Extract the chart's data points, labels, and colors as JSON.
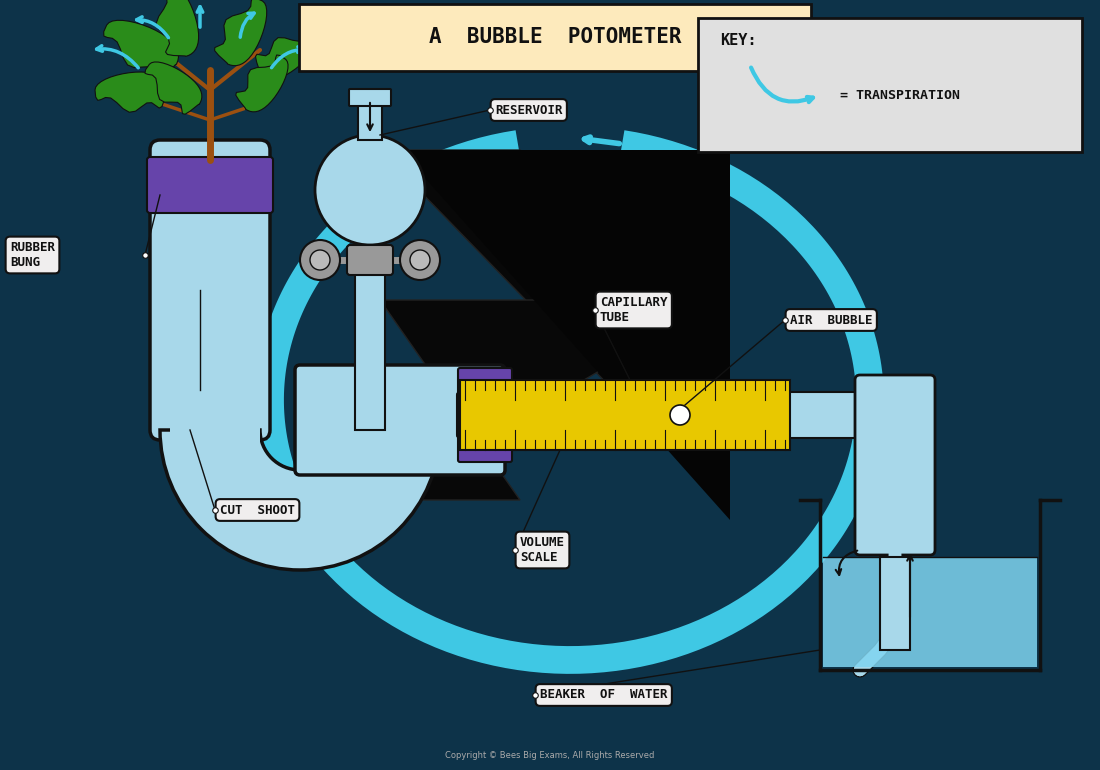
{
  "title": "A  BUBBLE  POTOMETER",
  "title_bg": "#FDEABC",
  "bg_color": "#0d3349",
  "key_text": "KEY:",
  "key_eq": "= TRANSPIRATION",
  "key_bg": "#e0e0e0",
  "labels": {
    "reservoir": "RESERVOIR",
    "rubber_bung": "RUBBER\nBUNG",
    "cut_shoot": "CUT  SHOOT",
    "capillary_tube": "CAPILLARY\nTUBE",
    "air_bubble": "AIR  BUBBLE",
    "volume_scale": "VOLUME\nSCALE",
    "beaker_of_water": "BEAKER  OF  WATER"
  },
  "cyan": "#3fc8e4",
  "green_leaf": "#2a8c1a",
  "brown_stem": "#9B5010",
  "purple": "#6644aa",
  "yellow_ruler": "#e8c800",
  "gray_connector": "#999999",
  "water_color": "#a8d8ea",
  "beaker_water": "#7fd4f0",
  "label_bg": "#f0eeee",
  "black": "#111111",
  "white": "#ffffff"
}
